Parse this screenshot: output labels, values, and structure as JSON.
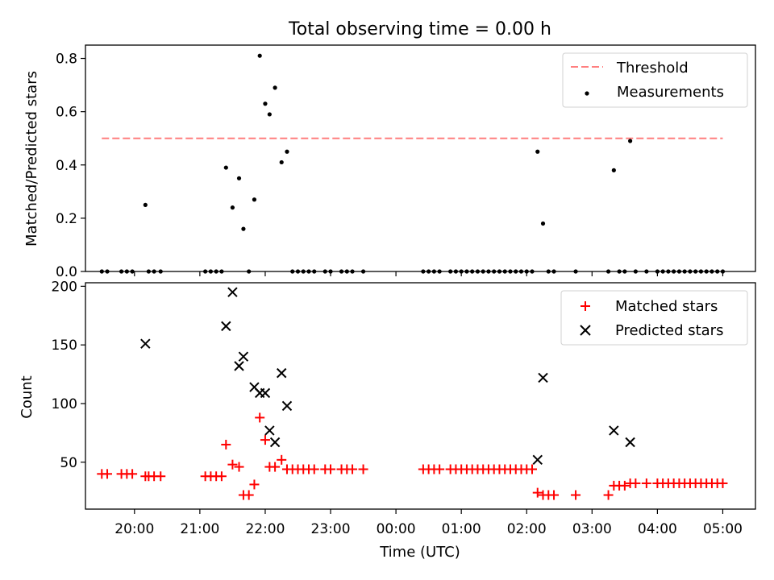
{
  "figure": {
    "title": "Total observing time = 0.00 h"
  },
  "chart_data": [
    {
      "type": "scatter",
      "panel": "top",
      "title": "Total observing time = 0.00 h",
      "ylabel": "Matched/Predicted stars",
      "xlabel": "",
      "xlim": [
        "19:15",
        "05:30"
      ],
      "ylim": [
        0,
        0.85
      ],
      "yticks": [
        0.0,
        0.2,
        0.4,
        0.6,
        0.8
      ],
      "yticklabels": [
        "0.0",
        "0.2",
        "0.4",
        "0.6",
        "0.8"
      ],
      "legend_position": "top-right",
      "threshold": {
        "name": "Threshold",
        "value": 0.5,
        "x_start": "19:30",
        "x_end": "05:00",
        "color": "#ff7f7f",
        "style": "dashed"
      },
      "series": [
        {
          "name": "Measurements",
          "color": "#000000",
          "marker": "dot",
          "points": [
            {
              "x": "19:30",
              "y": 0
            },
            {
              "x": "19:35",
              "y": 0
            },
            {
              "x": "19:48",
              "y": 0
            },
            {
              "x": "19:53",
              "y": 0
            },
            {
              "x": "19:58",
              "y": 0
            },
            {
              "x": "20:10",
              "y": 0.25
            },
            {
              "x": "20:13",
              "y": 0
            },
            {
              "x": "20:18",
              "y": 0
            },
            {
              "x": "20:24",
              "y": 0
            },
            {
              "x": "21:05",
              "y": 0
            },
            {
              "x": "21:10",
              "y": 0
            },
            {
              "x": "21:15",
              "y": 0
            },
            {
              "x": "21:20",
              "y": 0
            },
            {
              "x": "21:24",
              "y": 0.39
            },
            {
              "x": "21:30",
              "y": 0.24
            },
            {
              "x": "21:36",
              "y": 0.35
            },
            {
              "x": "21:40",
              "y": 0.16
            },
            {
              "x": "21:45",
              "y": 0
            },
            {
              "x": "21:50",
              "y": 0.27
            },
            {
              "x": "21:55",
              "y": 0.81
            },
            {
              "x": "22:00",
              "y": 0.63
            },
            {
              "x": "22:04",
              "y": 0.59
            },
            {
              "x": "22:09",
              "y": 0.69
            },
            {
              "x": "22:15",
              "y": 0.41
            },
            {
              "x": "22:20",
              "y": 0.45
            },
            {
              "x": "22:25",
              "y": 0
            },
            {
              "x": "22:30",
              "y": 0
            },
            {
              "x": "22:35",
              "y": 0
            },
            {
              "x": "22:40",
              "y": 0
            },
            {
              "x": "22:45",
              "y": 0
            },
            {
              "x": "22:55",
              "y": 0
            },
            {
              "x": "23:00",
              "y": 0
            },
            {
              "x": "23:10",
              "y": 0
            },
            {
              "x": "23:15",
              "y": 0
            },
            {
              "x": "23:20",
              "y": 0
            },
            {
              "x": "23:30",
              "y": 0
            },
            {
              "x": "00:25",
              "y": 0
            },
            {
              "x": "00:30",
              "y": 0
            },
            {
              "x": "00:35",
              "y": 0
            },
            {
              "x": "00:40",
              "y": 0
            },
            {
              "x": "00:50",
              "y": 0
            },
            {
              "x": "00:55",
              "y": 0
            },
            {
              "x": "01:00",
              "y": 0
            },
            {
              "x": "01:05",
              "y": 0
            },
            {
              "x": "01:10",
              "y": 0
            },
            {
              "x": "01:15",
              "y": 0
            },
            {
              "x": "01:20",
              "y": 0
            },
            {
              "x": "01:25",
              "y": 0
            },
            {
              "x": "01:30",
              "y": 0
            },
            {
              "x": "01:35",
              "y": 0
            },
            {
              "x": "01:40",
              "y": 0
            },
            {
              "x": "01:45",
              "y": 0
            },
            {
              "x": "01:50",
              "y": 0
            },
            {
              "x": "01:55",
              "y": 0
            },
            {
              "x": "02:00",
              "y": 0
            },
            {
              "x": "02:05",
              "y": 0
            },
            {
              "x": "02:10",
              "y": 0.45
            },
            {
              "x": "02:15",
              "y": 0.18
            },
            {
              "x": "02:20",
              "y": 0
            },
            {
              "x": "02:25",
              "y": 0
            },
            {
              "x": "02:45",
              "y": 0
            },
            {
              "x": "03:15",
              "y": 0
            },
            {
              "x": "03:20",
              "y": 0.38
            },
            {
              "x": "03:25",
              "y": 0
            },
            {
              "x": "03:30",
              "y": 0
            },
            {
              "x": "03:35",
              "y": 0.49
            },
            {
              "x": "03:40",
              "y": 0
            },
            {
              "x": "03:50",
              "y": 0
            },
            {
              "x": "04:00",
              "y": 0
            },
            {
              "x": "04:05",
              "y": 0
            },
            {
              "x": "04:10",
              "y": 0
            },
            {
              "x": "04:15",
              "y": 0
            },
            {
              "x": "04:20",
              "y": 0
            },
            {
              "x": "04:25",
              "y": 0
            },
            {
              "x": "04:30",
              "y": 0
            },
            {
              "x": "04:35",
              "y": 0
            },
            {
              "x": "04:40",
              "y": 0
            },
            {
              "x": "04:45",
              "y": 0
            },
            {
              "x": "04:50",
              "y": 0
            },
            {
              "x": "04:55",
              "y": 0
            },
            {
              "x": "05:00",
              "y": 0
            }
          ]
        }
      ]
    },
    {
      "type": "scatter",
      "panel": "bottom",
      "title": "",
      "xlabel": "Time (UTC)",
      "ylabel": "Count",
      "xlim": [
        "19:15",
        "05:30"
      ],
      "ylim": [
        10,
        203
      ],
      "yticks": [
        50,
        100,
        150,
        200
      ],
      "yticklabels": [
        "50",
        "100",
        "150",
        "200"
      ],
      "xticks": [
        "20:00",
        "21:00",
        "22:00",
        "23:00",
        "00:00",
        "01:00",
        "02:00",
        "03:00",
        "04:00",
        "05:00"
      ],
      "xticklabels": [
        "20:00",
        "21:00",
        "22:00",
        "23:00",
        "00:00",
        "01:00",
        "02:00",
        "03:00",
        "04:00",
        "05:00"
      ],
      "legend_position": "top-right",
      "series": [
        {
          "name": "Matched stars",
          "color": "#ff0000",
          "marker": "plus",
          "points": [
            {
              "x": "19:30",
              "y": 40
            },
            {
              "x": "19:35",
              "y": 40
            },
            {
              "x": "19:48",
              "y": 40
            },
            {
              "x": "19:53",
              "y": 40
            },
            {
              "x": "19:58",
              "y": 40
            },
            {
              "x": "20:10",
              "y": 38
            },
            {
              "x": "20:13",
              "y": 38
            },
            {
              "x": "20:18",
              "y": 38
            },
            {
              "x": "20:24",
              "y": 38
            },
            {
              "x": "21:05",
              "y": 38
            },
            {
              "x": "21:10",
              "y": 38
            },
            {
              "x": "21:15",
              "y": 38
            },
            {
              "x": "21:20",
              "y": 38
            },
            {
              "x": "21:24",
              "y": 65
            },
            {
              "x": "21:30",
              "y": 48
            },
            {
              "x": "21:36",
              "y": 46
            },
            {
              "x": "21:40",
              "y": 22
            },
            {
              "x": "21:45",
              "y": 22
            },
            {
              "x": "21:50",
              "y": 31
            },
            {
              "x": "21:55",
              "y": 88
            },
            {
              "x": "22:00",
              "y": 69
            },
            {
              "x": "22:04",
              "y": 46
            },
            {
              "x": "22:09",
              "y": 46
            },
            {
              "x": "22:15",
              "y": 52
            },
            {
              "x": "22:20",
              "y": 44
            },
            {
              "x": "22:25",
              "y": 44
            },
            {
              "x": "22:30",
              "y": 44
            },
            {
              "x": "22:35",
              "y": 44
            },
            {
              "x": "22:40",
              "y": 44
            },
            {
              "x": "22:45",
              "y": 44
            },
            {
              "x": "22:55",
              "y": 44
            },
            {
              "x": "23:00",
              "y": 44
            },
            {
              "x": "23:10",
              "y": 44
            },
            {
              "x": "23:15",
              "y": 44
            },
            {
              "x": "23:20",
              "y": 44
            },
            {
              "x": "23:30",
              "y": 44
            },
            {
              "x": "00:25",
              "y": 44
            },
            {
              "x": "00:30",
              "y": 44
            },
            {
              "x": "00:35",
              "y": 44
            },
            {
              "x": "00:40",
              "y": 44
            },
            {
              "x": "00:50",
              "y": 44
            },
            {
              "x": "00:55",
              "y": 44
            },
            {
              "x": "01:00",
              "y": 44
            },
            {
              "x": "01:05",
              "y": 44
            },
            {
              "x": "01:10",
              "y": 44
            },
            {
              "x": "01:15",
              "y": 44
            },
            {
              "x": "01:20",
              "y": 44
            },
            {
              "x": "01:25",
              "y": 44
            },
            {
              "x": "01:30",
              "y": 44
            },
            {
              "x": "01:35",
              "y": 44
            },
            {
              "x": "01:40",
              "y": 44
            },
            {
              "x": "01:45",
              "y": 44
            },
            {
              "x": "01:50",
              "y": 44
            },
            {
              "x": "01:55",
              "y": 44
            },
            {
              "x": "02:00",
              "y": 44
            },
            {
              "x": "02:05",
              "y": 44
            },
            {
              "x": "02:10",
              "y": 24
            },
            {
              "x": "02:15",
              "y": 22
            },
            {
              "x": "02:20",
              "y": 22
            },
            {
              "x": "02:25",
              "y": 22
            },
            {
              "x": "02:45",
              "y": 22
            },
            {
              "x": "03:15",
              "y": 22
            },
            {
              "x": "03:20",
              "y": 30
            },
            {
              "x": "03:25",
              "y": 30
            },
            {
              "x": "03:30",
              "y": 30
            },
            {
              "x": "03:35",
              "y": 32
            },
            {
              "x": "03:40",
              "y": 32
            },
            {
              "x": "03:50",
              "y": 32
            },
            {
              "x": "04:00",
              "y": 32
            },
            {
              "x": "04:05",
              "y": 32
            },
            {
              "x": "04:10",
              "y": 32
            },
            {
              "x": "04:15",
              "y": 32
            },
            {
              "x": "04:20",
              "y": 32
            },
            {
              "x": "04:25",
              "y": 32
            },
            {
              "x": "04:30",
              "y": 32
            },
            {
              "x": "04:35",
              "y": 32
            },
            {
              "x": "04:40",
              "y": 32
            },
            {
              "x": "04:45",
              "y": 32
            },
            {
              "x": "04:50",
              "y": 32
            },
            {
              "x": "04:55",
              "y": 32
            },
            {
              "x": "05:00",
              "y": 32
            }
          ]
        },
        {
          "name": "Predicted stars",
          "color": "#000000",
          "marker": "x",
          "points": [
            {
              "x": "20:10",
              "y": 151
            },
            {
              "x": "21:24",
              "y": 166
            },
            {
              "x": "21:30",
              "y": 195
            },
            {
              "x": "21:36",
              "y": 132
            },
            {
              "x": "21:40",
              "y": 140
            },
            {
              "x": "21:50",
              "y": 114
            },
            {
              "x": "21:55",
              "y": 109
            },
            {
              "x": "22:00",
              "y": 109
            },
            {
              "x": "22:04",
              "y": 77
            },
            {
              "x": "22:09",
              "y": 67
            },
            {
              "x": "22:15",
              "y": 126
            },
            {
              "x": "22:20",
              "y": 98
            },
            {
              "x": "02:10",
              "y": 52
            },
            {
              "x": "02:15",
              "y": 122
            },
            {
              "x": "03:20",
              "y": 77
            },
            {
              "x": "03:35",
              "y": 67
            }
          ]
        }
      ]
    }
  ]
}
